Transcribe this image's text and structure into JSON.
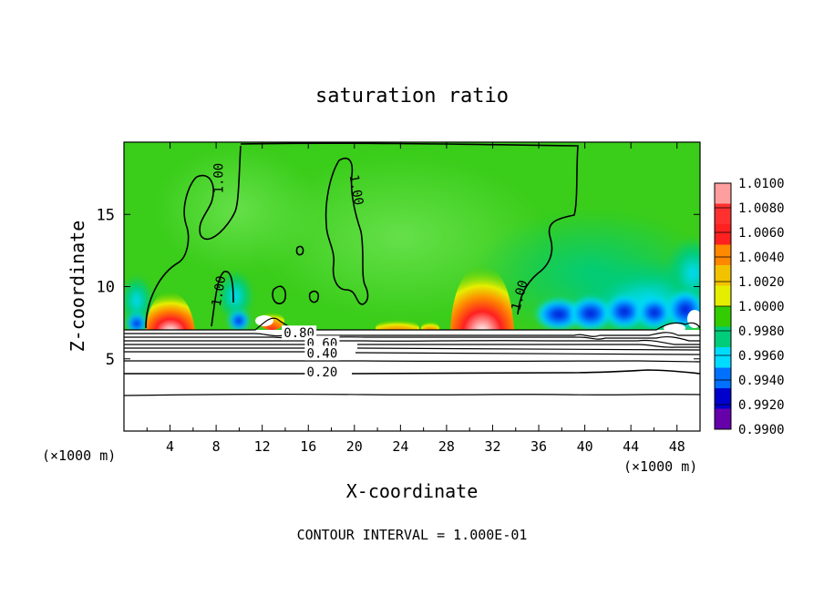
{
  "chart_data": {
    "type": "heatmap",
    "title": "saturation ratio",
    "xlabel": "X-coordinate",
    "ylabel": "Z-coordinate",
    "x_unit_left": "(×1000 m)",
    "x_unit_right": "(×1000 m)",
    "xlim": [
      0,
      50
    ],
    "ylim": [
      0,
      20
    ],
    "x_ticks": [
      4,
      8,
      12,
      16,
      20,
      24,
      28,
      32,
      36,
      40,
      44,
      48
    ],
    "y_ticks": [
      5,
      10,
      15
    ],
    "colorbar": {
      "levels": [
        "1.0100",
        "1.0080",
        "1.0060",
        "1.0040",
        "1.0020",
        "1.0000",
        "0.9980",
        "0.9960",
        "0.9940",
        "0.9920",
        "0.9900"
      ],
      "colors": [
        "#ff9e9e",
        "#ff3030",
        "#ff2020",
        "#ff8800",
        "#f2c200",
        "#e6ee00",
        "#33cc00",
        "#00cc7a",
        "#00dcff",
        "#0070ff",
        "#0000cc",
        "#6600aa"
      ]
    },
    "contour_labels": [
      {
        "text": "1.00",
        "x": 8.2,
        "z": 17.5,
        "angle": -90
      },
      {
        "text": "1.00",
        "x": 20.2,
        "z": 16.7,
        "angle": 80
      },
      {
        "text": "1.00",
        "x": 8.2,
        "z": 9.7,
        "angle": -80
      },
      {
        "text": "1.00",
        "x": 34.3,
        "z": 9.4,
        "angle": -75
      },
      {
        "text": "0.80",
        "x": 15.2,
        "z": 6.8,
        "angle": 0
      },
      {
        "text": "0.60",
        "x": 17.2,
        "z": 6.1,
        "angle": 0
      },
      {
        "text": "0.40",
        "x": 17.2,
        "z": 5.4,
        "angle": 0
      },
      {
        "text": "0.20",
        "x": 17.2,
        "z": 4.1,
        "angle": 0
      }
    ],
    "contour_interval_text": "CONTOUR INTERVAL = 1.000E-01"
  }
}
